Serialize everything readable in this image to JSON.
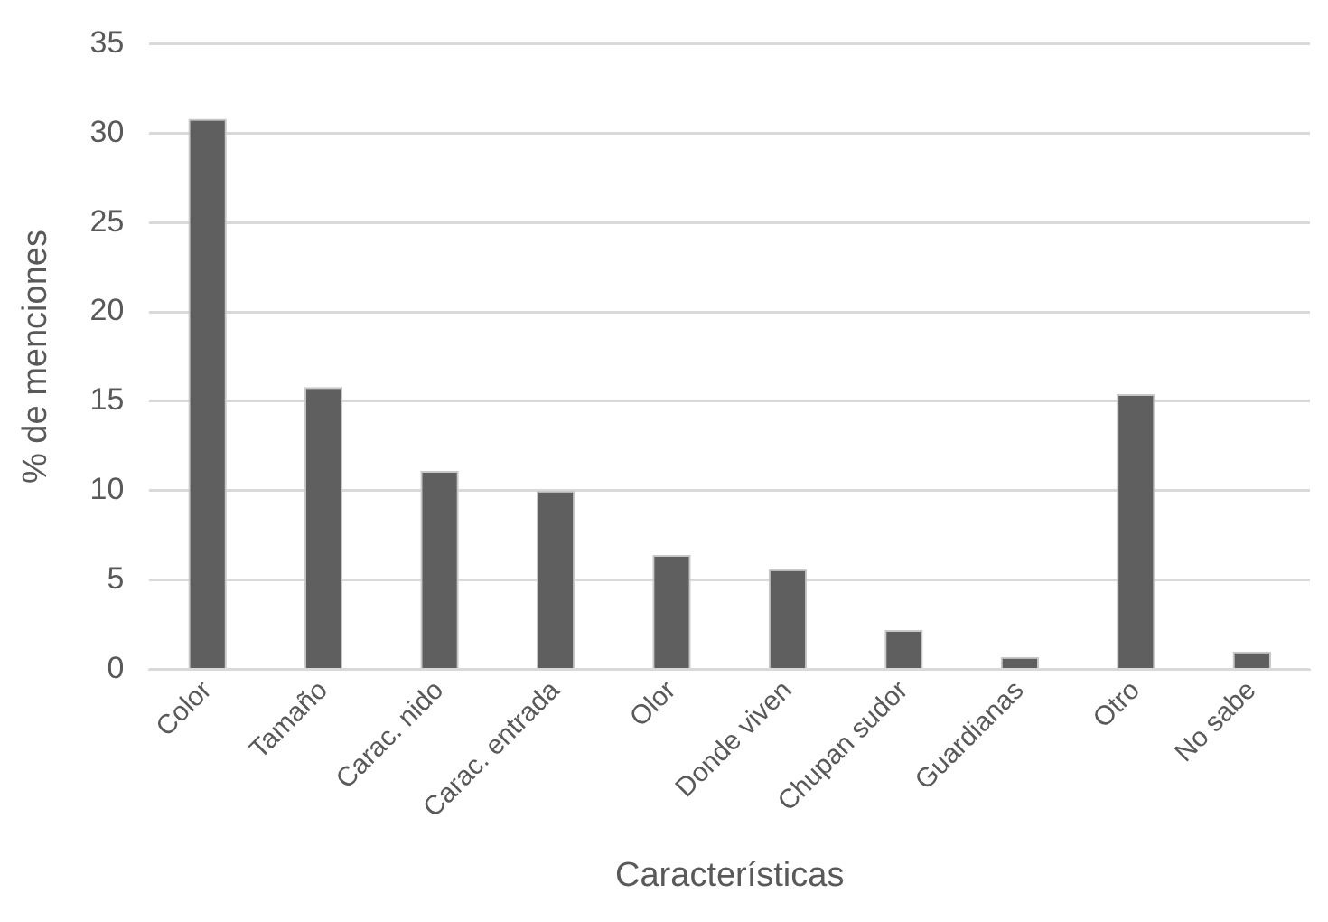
{
  "chart_data": {
    "type": "bar",
    "xlabel": "Características",
    "ylabel": "% de menciones",
    "categories": [
      "Color",
      "Tamaño",
      "Carac. nido",
      "Carac. entrada",
      "Olor",
      "Donde viven",
      "Chupan sudor",
      "Guardianas",
      "Otro",
      "No sabe"
    ],
    "values": [
      30.8,
      15.8,
      11.1,
      10.0,
      6.4,
      5.6,
      2.2,
      0.7,
      15.4,
      1.0
    ],
    "color": "#5f5f5f",
    "ylim": [
      0,
      35
    ],
    "yticks": [
      0,
      5,
      10,
      15,
      20,
      25,
      30,
      35
    ],
    "grid": "y",
    "legend": false
  }
}
